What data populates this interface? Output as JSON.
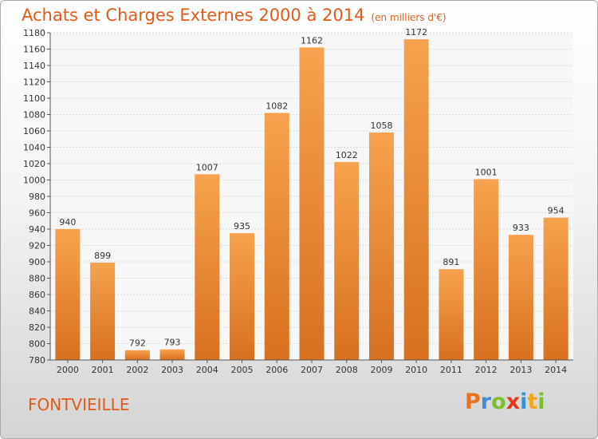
{
  "header": {
    "title": "Achats et Charges Externes 2000 à 2014",
    "subtitle": "(en milliers d'€)"
  },
  "footer": {
    "place": "FONTVIEILLE",
    "logo_letters": [
      "P",
      "r",
      "o",
      "x",
      "i",
      "t",
      "i"
    ],
    "logo_colors": [
      "#e8731c",
      "#3b8fd6",
      "#7cbf2a",
      "#e0391b",
      "#3b8fd6",
      "#f2a41a",
      "#7cbf2a"
    ]
  },
  "colors": {
    "bar_top": "#f7a24e",
    "bar_bottom": "#d8701e",
    "accent": "#e05a1a"
  },
  "chart_data": {
    "type": "bar",
    "categories": [
      "2000",
      "2001",
      "2002",
      "2003",
      "2004",
      "2005",
      "2006",
      "2007",
      "2008",
      "2009",
      "2010",
      "2011",
      "2012",
      "2013",
      "2014"
    ],
    "values": [
      940,
      899,
      792,
      793,
      1007,
      935,
      1082,
      1162,
      1022,
      1058,
      1172,
      891,
      1001,
      933,
      954
    ],
    "title": "Achats et Charges Externes 2000 à 2014",
    "ylim": [
      780,
      1180
    ],
    "yticks": [
      780,
      800,
      820,
      840,
      860,
      880,
      900,
      920,
      940,
      960,
      980,
      1000,
      1020,
      1040,
      1060,
      1080,
      1100,
      1120,
      1140,
      1160,
      1180
    ],
    "grid": true,
    "show_value_labels": true
  }
}
